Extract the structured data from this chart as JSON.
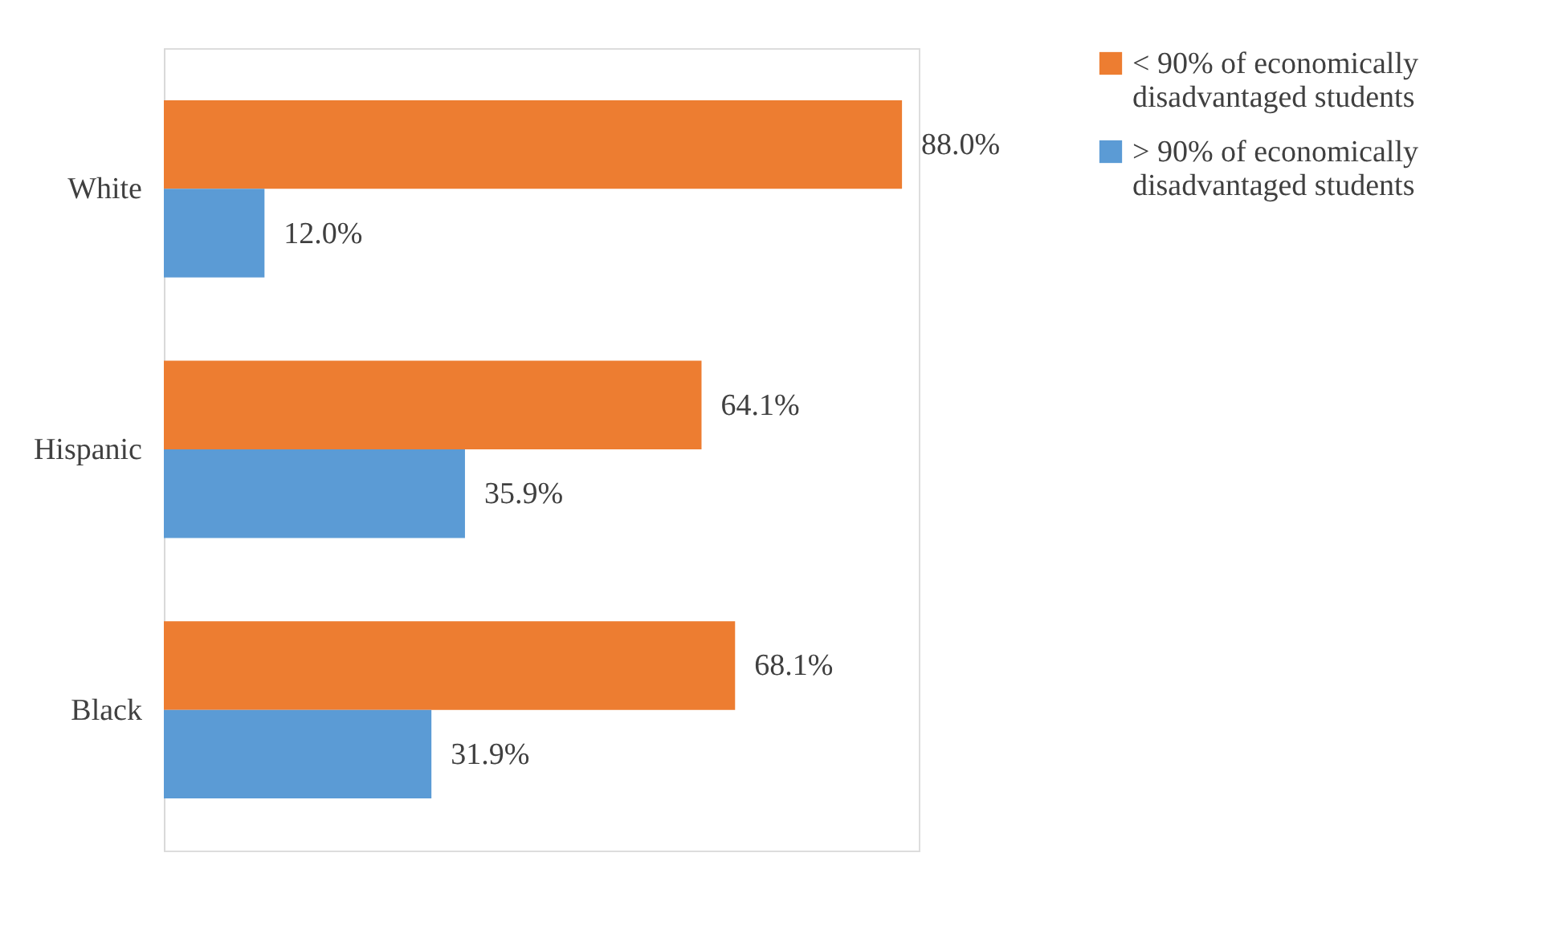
{
  "chart_data": {
    "type": "bar",
    "orientation": "horizontal",
    "categories": [
      "White",
      "Hispanic",
      "Black"
    ],
    "series": [
      {
        "name": "< 90% of economically disadvantaged students",
        "color": "#ed7d31",
        "values": [
          88.0,
          64.1,
          68.1
        ],
        "value_labels": [
          "88.0%",
          "64.1%",
          "68.1%"
        ]
      },
      {
        "name": "> 90% of economically disadvantaged students",
        "color": "#5b9bd5",
        "values": [
          12.0,
          35.9,
          31.9
        ],
        "value_labels": [
          "12.0%",
          "35.9%",
          "31.9%"
        ]
      }
    ],
    "legend": "right"
  }
}
